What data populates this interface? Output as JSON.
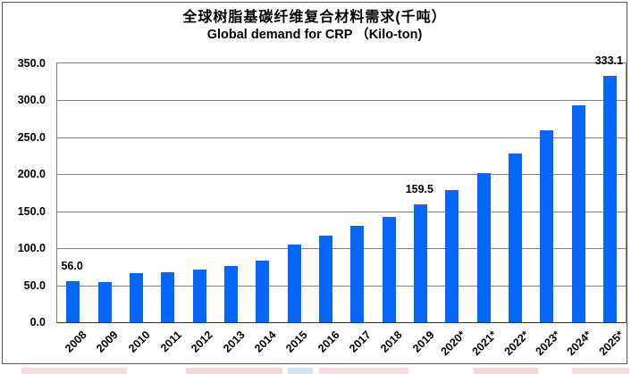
{
  "figure": {
    "title_line1": "全球树脂基碳纤维复合材料需求(千吨）",
    "title_line2": "Global demand for CRP （Kilo-ton)"
  },
  "chart_data": {
    "type": "bar",
    "title": "全球树脂基碳纤维复合材料需求(千吨）",
    "subtitle": "Global demand for CRP （Kilo-ton)",
    "categories": [
      "2008",
      "2009",
      "2010",
      "2011",
      "2012",
      "2013",
      "2014",
      "2015",
      "2016",
      "2017",
      "2018",
      "2019",
      "2020*",
      "2021*",
      "2022*",
      "2023*",
      "2024*",
      "2025*"
    ],
    "values": [
      56.0,
      54.0,
      66.0,
      68.0,
      71.5,
      76.5,
      83.0,
      104.5,
      117.5,
      130.0,
      142.0,
      159.5,
      178.5,
      202.0,
      228.5,
      259.0,
      293.5,
      333.1
    ],
    "data_labels": [
      {
        "category": "2008",
        "index": 0,
        "text": "56.0"
      },
      {
        "category": "2019",
        "index": 11,
        "text": "159.5"
      },
      {
        "category": "2025*",
        "index": 17,
        "text": "333.1"
      }
    ],
    "ylim": [
      0,
      350
    ],
    "ytick_step": 50,
    "ytick_labels": [
      "0.0",
      "50.0",
      "100.0",
      "150.0",
      "200.0",
      "250.0",
      "300.0",
      "350.0"
    ],
    "xlabel": "",
    "ylabel": "",
    "grid": true,
    "legend": "none",
    "x_tick_rotation_deg": -45,
    "bar_color": "#0567fa",
    "gridline_color": "#808080",
    "text_color": "#000000"
  },
  "watermark_segments": [
    {
      "x": 24,
      "w": 118,
      "color": "#f8dcdc"
    },
    {
      "x": 208,
      "w": 108,
      "color": "#f7d6d6"
    },
    {
      "x": 322,
      "w": 28,
      "color": "#d4e2f5"
    },
    {
      "x": 357,
      "w": 100,
      "color": "#f8dcdc"
    },
    {
      "x": 530,
      "w": 72,
      "color": "#f7d6d6"
    },
    {
      "x": 640,
      "w": 64,
      "color": "#f8dcdc"
    }
  ]
}
